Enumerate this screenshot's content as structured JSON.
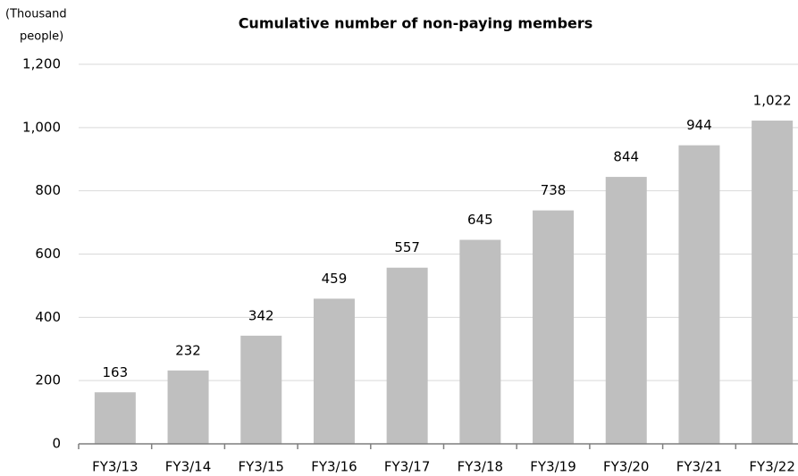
{
  "chart_data": {
    "type": "bar",
    "title": "Cumulative number of non-paying members",
    "y_label": [
      "(Thousand",
      "people)"
    ],
    "categories": [
      "FY3/13",
      "FY3/14",
      "FY3/15",
      "FY3/16",
      "FY3/17",
      "FY3/18",
      "FY3/19",
      "FY3/20",
      "FY3/21",
      "FY3/22"
    ],
    "values": [
      163,
      232,
      342,
      459,
      557,
      645,
      738,
      844,
      944,
      1022
    ],
    "value_labels": [
      "163",
      "232",
      "342",
      "459",
      "557",
      "645",
      "738",
      "844",
      "944",
      "1,022"
    ],
    "color": "#bfbfbf",
    "ylim": [
      0,
      1200
    ],
    "yticks": [
      0,
      200,
      400,
      600,
      800,
      {
        "value": 1000,
        "label": "1,000"
      },
      {
        "value": 1200,
        "label": "1,200"
      }
    ],
    "grid": true
  }
}
